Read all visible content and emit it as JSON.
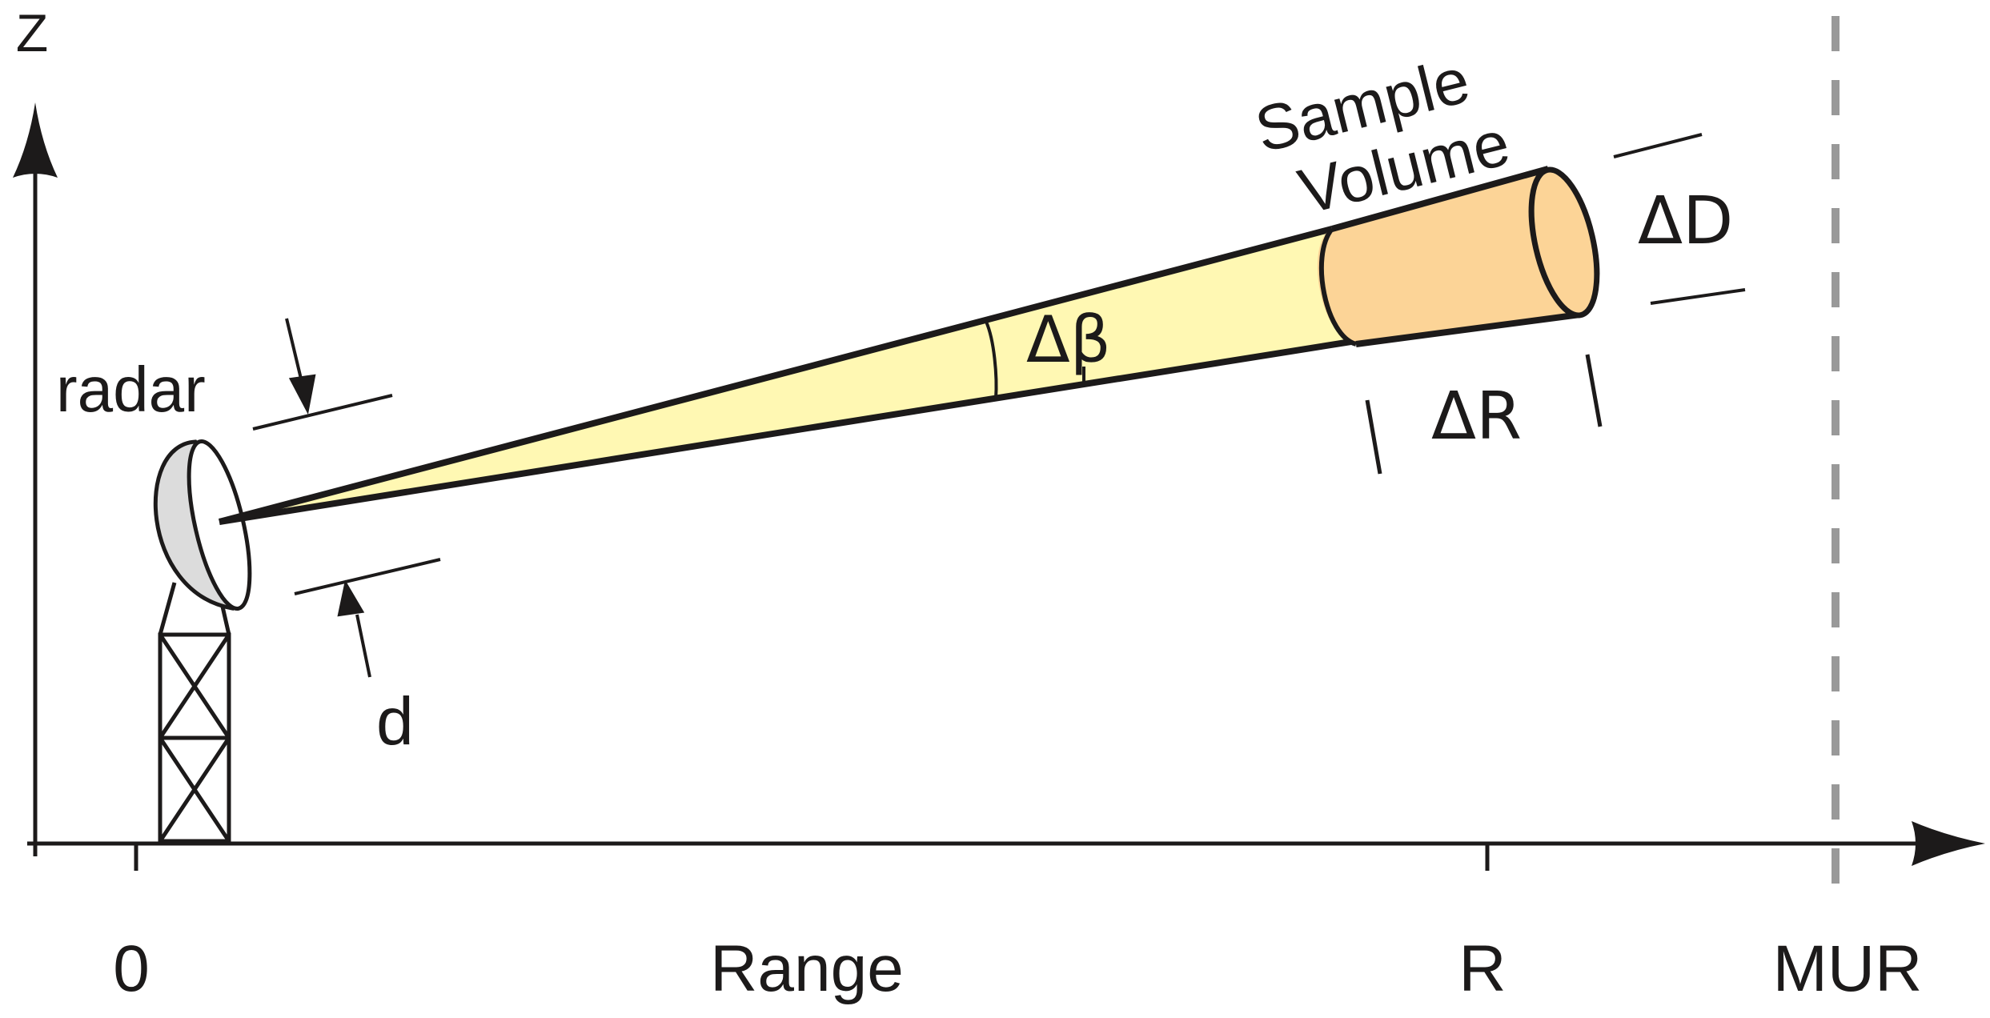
{
  "axes": {
    "y_label": "Z",
    "x_label": "Range",
    "x_origin_label": "0",
    "x_range_label": "R",
    "x_max_label": "MUR"
  },
  "radar": {
    "label": "radar",
    "dish_diameter_label": "d"
  },
  "beam": {
    "beamwidth_label": "Δβ"
  },
  "sample_volume": {
    "title_line1": "Sample",
    "title_line2": "Volume",
    "range_depth_label": "ΔR",
    "diameter_label": "ΔD"
  },
  "colors": {
    "beam_fill": "#fff8b3",
    "volume_fill": "#fcd497",
    "dish_fill": "#dcdcdc",
    "ink": "#1c1a1a",
    "max_range_line": "#999999"
  }
}
